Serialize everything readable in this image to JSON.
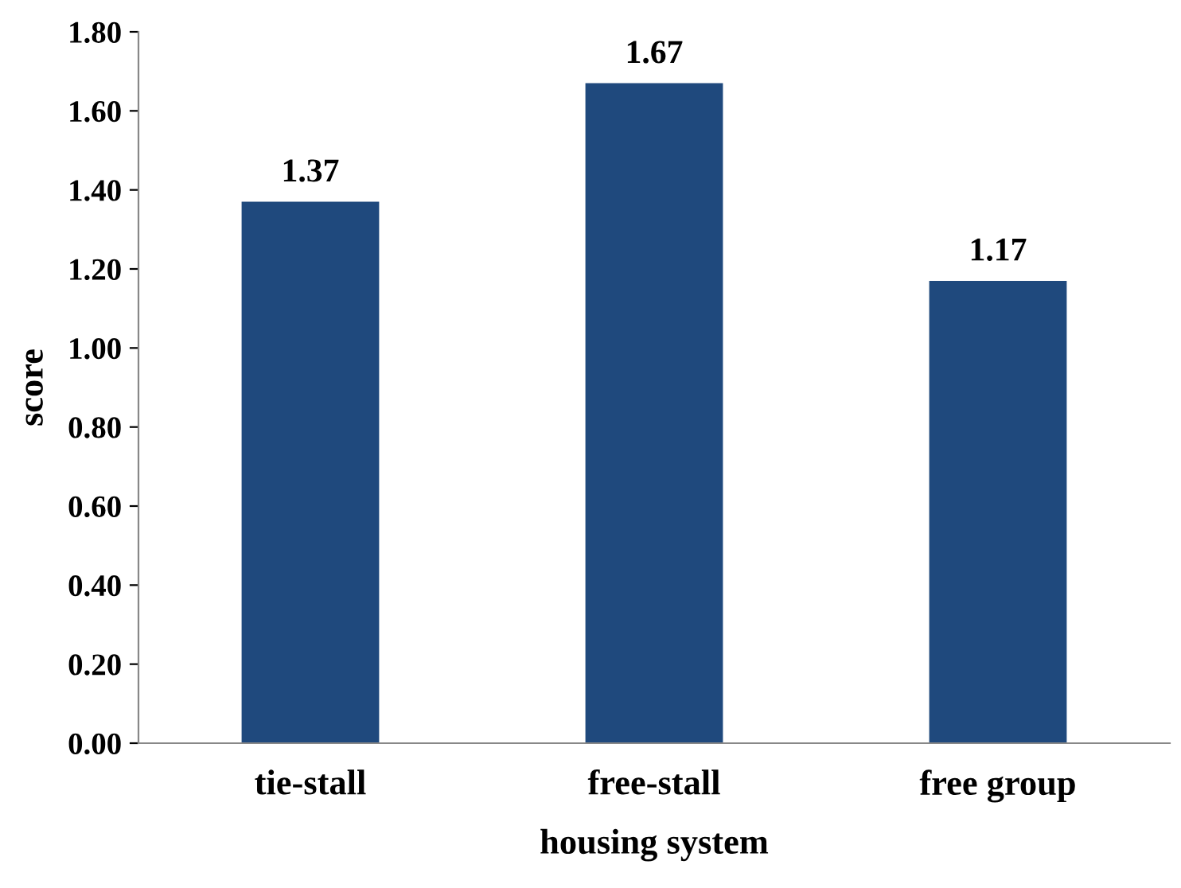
{
  "chart_data": {
    "type": "bar",
    "xlabel": "housing system",
    "ylabel": "score",
    "categories": [
      "tie-stall",
      "free-stall",
      "free group"
    ],
    "values": [
      1.37,
      1.67,
      1.17
    ],
    "color": "#1f497d",
    "ylim": [
      0,
      1.8
    ],
    "yticks": [
      {
        "value": 0,
        "label": "0.00"
      },
      {
        "value": 0.2,
        "label": "0.20"
      },
      {
        "value": 0.4,
        "label": "0.40"
      },
      {
        "value": 0.6,
        "label": "0.60"
      },
      {
        "value": 0.8,
        "label": "0.80"
      },
      {
        "value": 1.0,
        "label": "1.00"
      },
      {
        "value": 1.2,
        "label": "1.20"
      },
      {
        "value": 1.4,
        "label": "1.40"
      },
      {
        "value": 1.6,
        "label": "1.60"
      },
      {
        "value": 1.8,
        "label": "1.80"
      }
    ],
    "grid": false,
    "legend": false,
    "data_labels": true
  }
}
